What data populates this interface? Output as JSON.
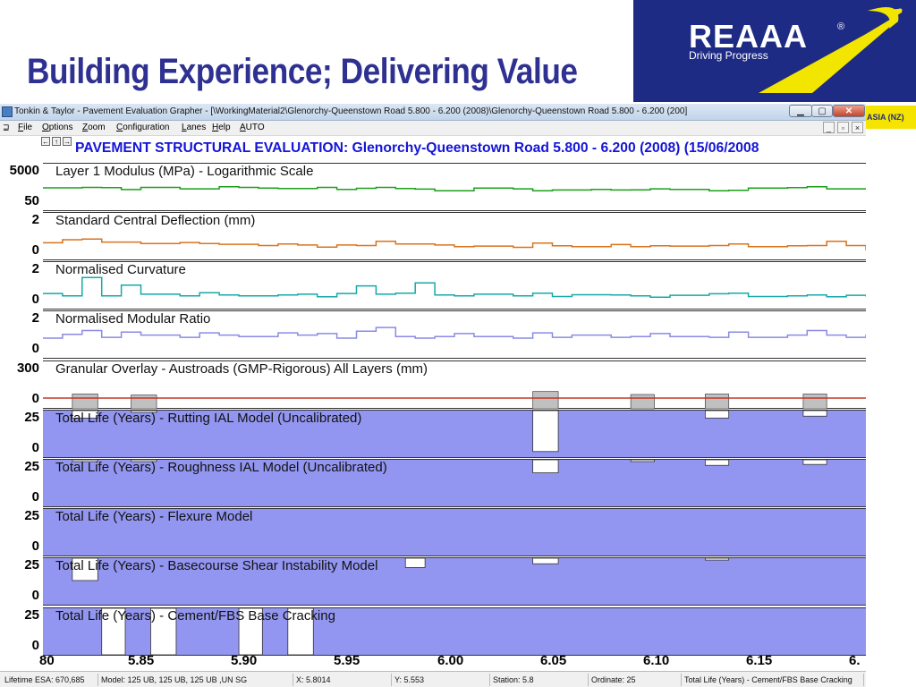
{
  "slide": {
    "title": "Building Experience; Delivering Value",
    "logo": {
      "name": "REAAA",
      "reg": "®",
      "tagline": "Driving Progress",
      "strip_text": "ASIA (NZ)"
    }
  },
  "window": {
    "title": "Tonkin & Taylor - Pavement Evaluation Grapher - [\\WorkingMaterial2\\Glenorchy-Queenstown Road 5.800 - 6.200 (2008)\\Glenorchy-Queenstown Road 5.800 - 6.200 (200]",
    "controls": {
      "minimize": "▁",
      "restore": "▢",
      "close": "✕"
    },
    "mdi_controls": {
      "minimize": "_",
      "restore": "▫",
      "close": "×"
    },
    "menu": [
      {
        "label": "File",
        "key": "F",
        "rest": "ile"
      },
      {
        "label": "Options",
        "key": "O",
        "rest": "ptions"
      },
      {
        "label": "Zoom",
        "key": "Z",
        "rest": "oom"
      },
      {
        "label": "Configuration",
        "key": "C",
        "rest": "onfiguration"
      },
      {
        "label": "Lanes",
        "key": "L",
        "rest": "anes"
      },
      {
        "label": "Help",
        "key": "H",
        "rest": "elp"
      },
      {
        "label": "AUTO",
        "key": "A",
        "rest": "UTO"
      }
    ],
    "nav_buttons": [
      "←",
      "↑",
      "→"
    ],
    "report_title": "PAVEMENT STRUCTURAL EVALUATION: Glenorchy-Queenstown Road 5.800 - 6.200 (2008) (15/06/2008"
  },
  "chart_data": {
    "type": "line",
    "x_ticks": [
      "80",
      "5.85",
      "5.90",
      "5.95",
      "6.00",
      "6.05",
      "6.10",
      "6.15",
      "6."
    ],
    "xlim": [
      5.78,
      6.2
    ],
    "panels": [
      {
        "label": "Layer 1 Modulus (MPa) - Logarithmic Scale",
        "scale_top": "5000",
        "scale_bottom": "50",
        "kind": "line",
        "color": "#1aa01a",
        "log": true,
        "x": [
          5.78,
          5.8,
          5.81,
          5.82,
          5.83,
          5.85,
          5.87,
          5.88,
          5.89,
          5.9,
          5.92,
          5.93,
          5.94,
          5.95,
          5.96,
          5.97,
          5.98,
          6.0,
          6.02,
          6.03,
          6.04,
          6.06,
          6.07,
          6.08,
          6.09,
          6.1,
          6.12,
          6.13,
          6.14,
          6.16,
          6.17,
          6.18,
          6.2
        ],
        "y": [
          750,
          800,
          780,
          580,
          800,
          650,
          900,
          800,
          720,
          680,
          800,
          600,
          700,
          800,
          680,
          620,
          480,
          720,
          650,
          480,
          540,
          600,
          540,
          560,
          650,
          600,
          480,
          520,
          720,
          780,
          880,
          650,
          720
        ]
      },
      {
        "label": "Standard Central Deflection (mm)",
        "scale_top": "2",
        "scale_bottom": "0",
        "kind": "line",
        "color": "#d9731c",
        "x": [
          5.78,
          5.79,
          5.8,
          5.81,
          5.83,
          5.85,
          5.86,
          5.87,
          5.89,
          5.9,
          5.91,
          5.92,
          5.93,
          5.94,
          5.95,
          5.96,
          5.98,
          5.99,
          6.0,
          6.02,
          6.03,
          6.04,
          6.05,
          6.07,
          6.08,
          6.09,
          6.1,
          6.12,
          6.13,
          6.14,
          6.16,
          6.17,
          6.18,
          6.19,
          6.2
        ],
        "y": [
          0.8,
          1.0,
          1.05,
          0.85,
          0.75,
          0.82,
          0.75,
          0.7,
          0.62,
          0.72,
          0.65,
          0.52,
          0.65,
          0.62,
          0.9,
          0.72,
          0.65,
          0.55,
          0.58,
          0.5,
          0.78,
          0.6,
          0.55,
          0.68,
          0.55,
          0.6,
          0.58,
          0.62,
          0.72,
          0.55,
          0.6,
          0.62,
          0.9,
          0.62,
          0.3
        ]
      },
      {
        "label": "Normalised Curvature",
        "scale_top": "2",
        "scale_bottom": "0",
        "kind": "line",
        "color": "#16a8a8",
        "x": [
          5.78,
          5.79,
          5.8,
          5.81,
          5.82,
          5.83,
          5.85,
          5.86,
          5.87,
          5.88,
          5.9,
          5.91,
          5.92,
          5.93,
          5.94,
          5.95,
          5.96,
          5.97,
          5.98,
          5.99,
          6.0,
          6.02,
          6.03,
          6.04,
          6.05,
          6.07,
          6.08,
          6.09,
          6.1,
          6.12,
          6.13,
          6.14,
          6.16,
          6.17,
          6.18,
          6.19,
          6.2
        ],
        "y": [
          0.7,
          0.55,
          1.75,
          0.55,
          1.25,
          0.65,
          0.55,
          0.75,
          0.6,
          0.55,
          0.6,
          0.65,
          0.48,
          0.7,
          1.2,
          0.65,
          0.72,
          1.4,
          0.6,
          0.55,
          0.65,
          0.55,
          0.72,
          0.5,
          0.62,
          0.6,
          0.55,
          0.45,
          0.58,
          0.68,
          0.72,
          0.5,
          0.55,
          0.6,
          0.48,
          0.58,
          0.5
        ]
      },
      {
        "label": "Normalised Modular Ratio",
        "scale_top": "2",
        "scale_bottom": "0",
        "kind": "line",
        "color": "#8a8ae6",
        "x": [
          5.78,
          5.79,
          5.8,
          5.81,
          5.82,
          5.83,
          5.85,
          5.86,
          5.87,
          5.88,
          5.9,
          5.91,
          5.92,
          5.93,
          5.94,
          5.95,
          5.96,
          5.97,
          5.98,
          5.99,
          6.0,
          6.02,
          6.03,
          6.04,
          6.05,
          6.07,
          6.08,
          6.09,
          6.1,
          6.12,
          6.13,
          6.14,
          6.16,
          6.17,
          6.18,
          6.19,
          6.2
        ],
        "y": [
          1.0,
          1.25,
          1.5,
          1.05,
          1.4,
          1.2,
          1.05,
          1.35,
          1.2,
          1.1,
          1.35,
          1.2,
          1.3,
          1.0,
          1.45,
          1.7,
          1.1,
          1.0,
          1.1,
          1.3,
          1.1,
          1.0,
          1.35,
          1.05,
          1.2,
          1.05,
          1.1,
          1.3,
          1.1,
          1.05,
          1.4,
          1.05,
          1.2,
          1.5,
          1.2,
          1.05,
          1.25
        ]
      },
      {
        "label": "Granular Overlay - Austroads (GMP-Rigorous) All Layers (mm)",
        "scale_top": "300",
        "scale_bottom": "0",
        "kind": "overlay",
        "line_color": "#c0392b",
        "bar_color": "#c0c0c0",
        "bars": [
          {
            "x0": 5.795,
            "x1": 5.808,
            "v": 40
          },
          {
            "x0": 5.825,
            "x1": 5.838,
            "v": 30
          },
          {
            "x0": 6.03,
            "x1": 6.043,
            "v": 65
          },
          {
            "x0": 6.08,
            "x1": 6.092,
            "v": 35
          },
          {
            "x0": 6.118,
            "x1": 6.13,
            "v": 40
          },
          {
            "x0": 6.168,
            "x1": 6.18,
            "v": 40
          }
        ]
      },
      {
        "label": "Total Life (Years) - Rutting IAL Model (Uncalibrated)",
        "scale_top": "25",
        "scale_bottom": "0",
        "kind": "life",
        "fill": "#9396f0",
        "gaps": [
          {
            "x0": 5.795,
            "x1": 5.808,
            "v": 21
          },
          {
            "x0": 5.825,
            "x1": 5.838,
            "v": 24
          },
          {
            "x0": 6.03,
            "x1": 6.043,
            "v": 3
          },
          {
            "x0": 6.118,
            "x1": 6.13,
            "v": 21
          },
          {
            "x0": 6.168,
            "x1": 6.18,
            "v": 22
          }
        ]
      },
      {
        "label": "Total Life (Years) - Roughness IAL Model (Uncalibrated)",
        "scale_top": "25",
        "scale_bottom": "0",
        "kind": "life",
        "fill": "#9396f0",
        "gaps": [
          {
            "x0": 5.795,
            "x1": 5.808,
            "v": 24.5
          },
          {
            "x0": 5.825,
            "x1": 5.838,
            "v": 24.5
          },
          {
            "x0": 6.03,
            "x1": 6.043,
            "v": 18
          },
          {
            "x0": 6.08,
            "x1": 6.092,
            "v": 24.8
          },
          {
            "x0": 6.118,
            "x1": 6.13,
            "v": 22
          },
          {
            "x0": 6.168,
            "x1": 6.18,
            "v": 22.5
          }
        ]
      },
      {
        "label": "Total Life (Years) - Flexure Model",
        "scale_top": "25",
        "scale_bottom": "0",
        "kind": "life",
        "fill": "#9396f0",
        "gaps": []
      },
      {
        "label": "Total Life (Years) - Basecourse Shear Instability Model",
        "scale_top": "25",
        "scale_bottom": "0",
        "kind": "life",
        "fill": "#9396f0",
        "gaps": [
          {
            "x0": 5.795,
            "x1": 5.808,
            "v": 13
          },
          {
            "x0": 5.965,
            "x1": 5.975,
            "v": 20
          },
          {
            "x0": 6.03,
            "x1": 6.043,
            "v": 22
          },
          {
            "x0": 6.118,
            "x1": 6.13,
            "v": 24
          }
        ]
      },
      {
        "label": "Total Life (Years) - Cement/FBS Base Cracking",
        "scale_top": "25",
        "scale_bottom": "0",
        "kind": "life",
        "fill": "#9396f0",
        "gaps": [
          {
            "x0": 5.81,
            "x1": 5.822,
            "v": 0
          },
          {
            "x0": 5.835,
            "x1": 5.848,
            "v": 0
          },
          {
            "x0": 5.88,
            "x1": 5.892,
            "v": 0
          },
          {
            "x0": 5.905,
            "x1": 5.918,
            "v": 0
          }
        ]
      }
    ]
  },
  "status": [
    "Lifetime ESA: 670,685",
    "Model: 125 UB, 125 UB, 125 UB ,UN SG",
    "X: 5.8014",
    "Y: 5.553",
    "Station: 5.8",
    "Ordinate: 25",
    "Total Life (Years) - Cement/FBS Base Cracking"
  ]
}
